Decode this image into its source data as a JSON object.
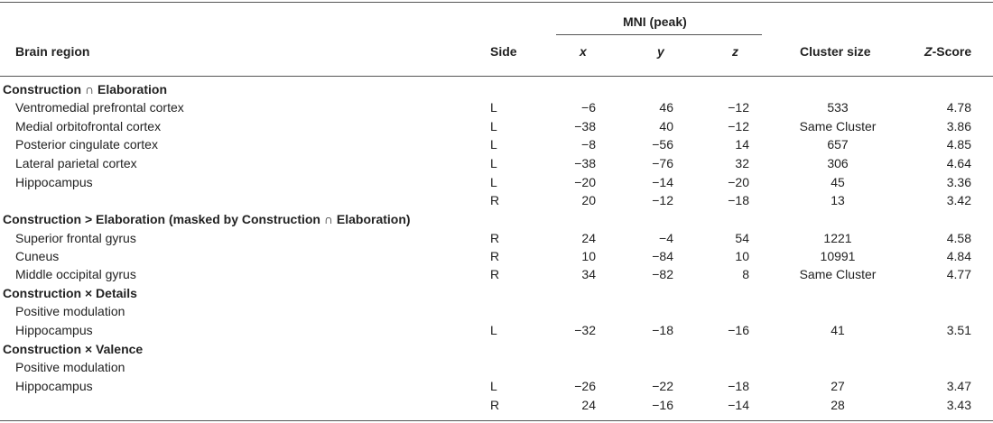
{
  "header": {
    "brain_region": "Brain region",
    "side": "Side",
    "mni_group": "MNI (peak)",
    "x": "x",
    "y": "y",
    "z": "z",
    "cluster_size": "Cluster size",
    "z_score_italic": "Z",
    "z_score_rest": "-Score"
  },
  "sections": [
    {
      "title": "Construction ∩ Elaboration",
      "rows": [
        {
          "region": "Ventromedial prefrontal cortex",
          "side": "L",
          "x": "−6",
          "y": "46",
          "z": "−12",
          "cluster": "533",
          "zscore": "4.78"
        },
        {
          "region": "Medial orbitofrontal cortex",
          "side": "L",
          "x": "−38",
          "y": "40",
          "z": "−12",
          "cluster": "Same Cluster",
          "zscore": "3.86"
        },
        {
          "region": "Posterior cingulate cortex",
          "side": "L",
          "x": "−8",
          "y": "−56",
          "z": "14",
          "cluster": "657",
          "zscore": "4.85"
        },
        {
          "region": "Lateral parietal cortex",
          "side": "L",
          "x": "−38",
          "y": "−76",
          "z": "32",
          "cluster": "306",
          "zscore": "4.64"
        },
        {
          "region": "Hippocampus",
          "side": "L",
          "x": "−20",
          "y": "−14",
          "z": "−20",
          "cluster": "45",
          "zscore": "3.36"
        },
        {
          "region": "",
          "side": "R",
          "x": "20",
          "y": "−12",
          "z": "−18",
          "cluster": "13",
          "zscore": "3.42"
        }
      ]
    },
    {
      "title": "Construction > Elaboration (masked by Construction ∩ Elaboration)",
      "rows": [
        {
          "region": "Superior frontal gyrus",
          "side": "R",
          "x": "24",
          "y": "−4",
          "z": "54",
          "cluster": "1221",
          "zscore": "4.58"
        },
        {
          "region": "Cuneus",
          "side": "R",
          "x": "10",
          "y": "−84",
          "z": "10",
          "cluster": "10991",
          "zscore": "4.84"
        },
        {
          "region": "Middle occipital gyrus",
          "side": "R",
          "x": "34",
          "y": "−82",
          "z": "8",
          "cluster": "Same Cluster",
          "zscore": "4.77"
        }
      ]
    },
    {
      "title": "Construction × Details",
      "subtitle": "Positive modulation",
      "rows": [
        {
          "region": "Hippocampus",
          "side": "L",
          "x": "−32",
          "y": "−18",
          "z": "−16",
          "cluster": "41",
          "zscore": "3.51"
        }
      ]
    },
    {
      "title": "Construction × Valence",
      "subtitle": "Positive modulation",
      "rows": [
        {
          "region": "Hippocampus",
          "side": "L",
          "x": "−26",
          "y": "−22",
          "z": "−18",
          "cluster": "27",
          "zscore": "3.47"
        },
        {
          "region": "",
          "side": "R",
          "x": "24",
          "y": "−16",
          "z": "−14",
          "cluster": "28",
          "zscore": "3.43"
        }
      ]
    }
  ]
}
